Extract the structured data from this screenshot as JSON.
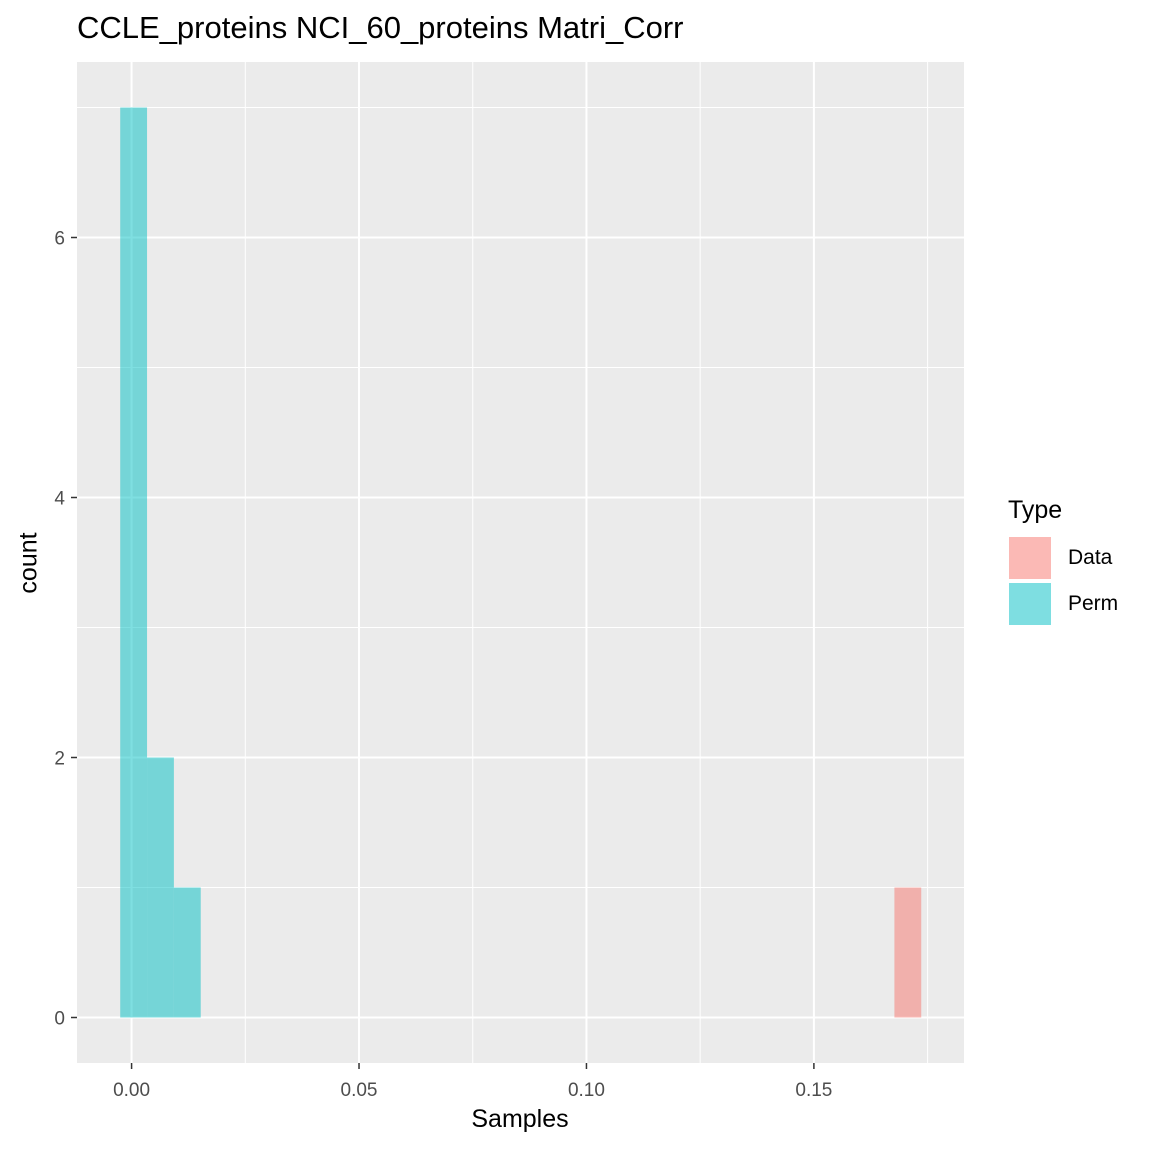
{
  "chart_data": {
    "type": "bar",
    "title": "CCLE_proteins NCI_60_proteins Matri_Corr",
    "xlabel": "Samples",
    "ylabel": "count",
    "xlim": [
      -0.012,
      0.183
    ],
    "ylim": [
      -0.35,
      7.35
    ],
    "x_ticks": [
      {
        "value": 0.0,
        "label": "0.00"
      },
      {
        "value": 0.05,
        "label": "0.05"
      },
      {
        "value": 0.1,
        "label": "0.10"
      },
      {
        "value": 0.15,
        "label": "0.15"
      }
    ],
    "y_ticks": [
      {
        "value": 0,
        "label": "0"
      },
      {
        "value": 2,
        "label": "2"
      },
      {
        "value": 4,
        "label": "4"
      },
      {
        "value": 6,
        "label": "6"
      }
    ],
    "grid": true,
    "legend": {
      "title": "Type",
      "position": "right",
      "entries": [
        {
          "label": "Data",
          "color": "#F8766D"
        },
        {
          "label": "Perm",
          "color": "#00BFC4"
        }
      ]
    },
    "bar_alpha": 0.5,
    "series": [
      {
        "name": "Perm",
        "color": "#00BFC4",
        "bins": [
          {
            "x0": -0.0025,
            "x1": 0.0034,
            "count": 7
          },
          {
            "x0": 0.0034,
            "x1": 0.0093,
            "count": 2
          },
          {
            "x0": 0.0093,
            "x1": 0.0152,
            "count": 1
          }
        ]
      },
      {
        "name": "Data",
        "color": "#F8766D",
        "bins": [
          {
            "x0": 0.1677,
            "x1": 0.1736,
            "count": 1
          }
        ]
      }
    ]
  }
}
